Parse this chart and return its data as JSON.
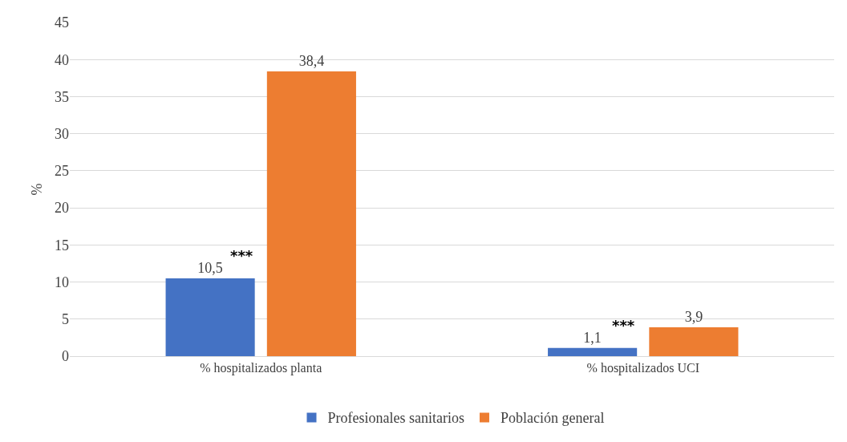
{
  "chart_data": {
    "type": "bar",
    "ylabel": "%",
    "categories": [
      "% hospitalizados planta",
      "% hospitalizados UCI"
    ],
    "series": [
      {
        "name": "Profesionales sanitarios",
        "color": "#4472c4",
        "values": [
          10.5,
          1.1
        ],
        "value_labels": [
          "10,5",
          "1,1"
        ]
      },
      {
        "name": "Población general",
        "color": "#ed7d31",
        "values": [
          38.4,
          3.9
        ],
        "value_labels": [
          "38,4",
          "3,9"
        ]
      }
    ],
    "ylim": [
      0,
      45
    ],
    "yticks": [
      0,
      5,
      10,
      15,
      20,
      25,
      30,
      35,
      40,
      45
    ],
    "grid": "y",
    "legend": "bottom",
    "annotations": [
      "***",
      "***"
    ]
  }
}
